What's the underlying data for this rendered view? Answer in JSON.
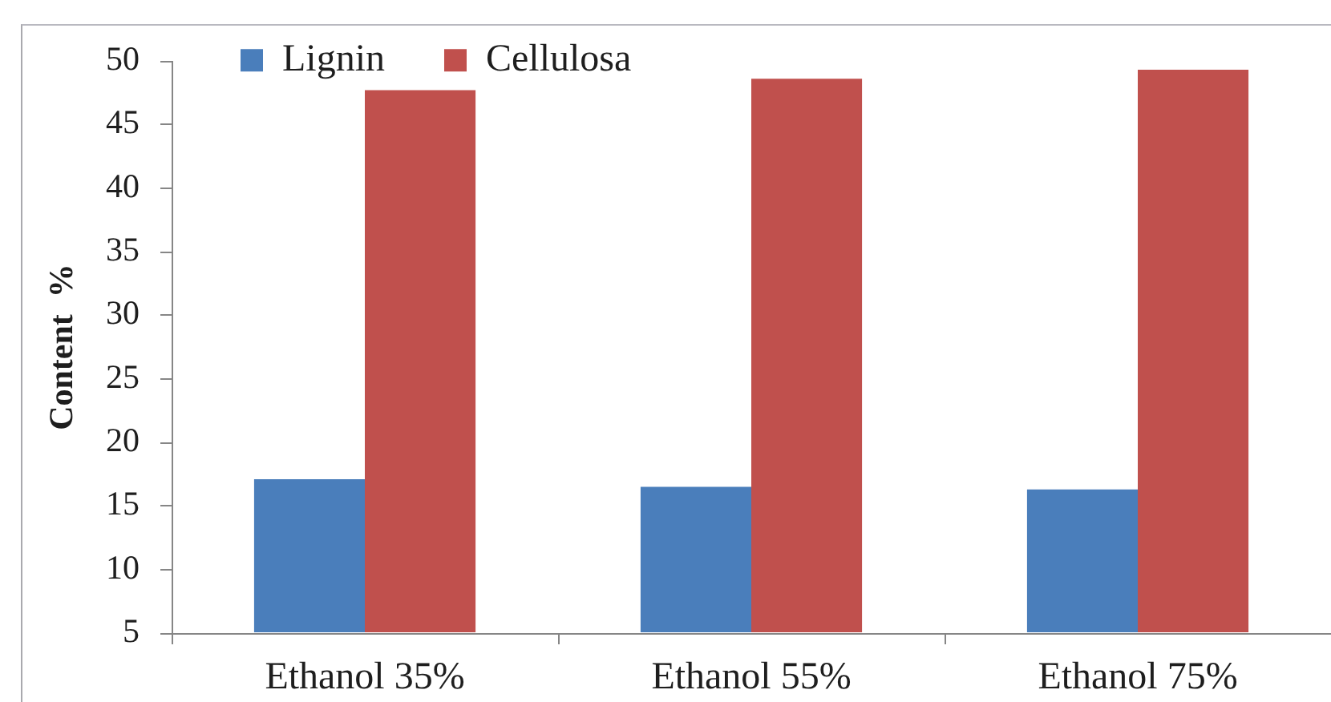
{
  "chart_data": {
    "type": "bar",
    "ylabel": "Content  %",
    "categories": [
      "Ethanol 35%",
      "Ethanol 55%",
      "Ethanol 75%"
    ],
    "series": [
      {
        "name": "Lignin",
        "color": "#4a7ebb",
        "values": [
          17.1,
          16.5,
          16.3
        ]
      },
      {
        "name": "Cellulosa",
        "color": "#c0504d",
        "values": [
          47.7,
          48.6,
          49.3
        ]
      }
    ],
    "ylim": [
      5,
      50
    ],
    "yticks": [
      5,
      10,
      15,
      20,
      25,
      30,
      35,
      40,
      45,
      50
    ],
    "grid": false,
    "legend": "top left"
  }
}
